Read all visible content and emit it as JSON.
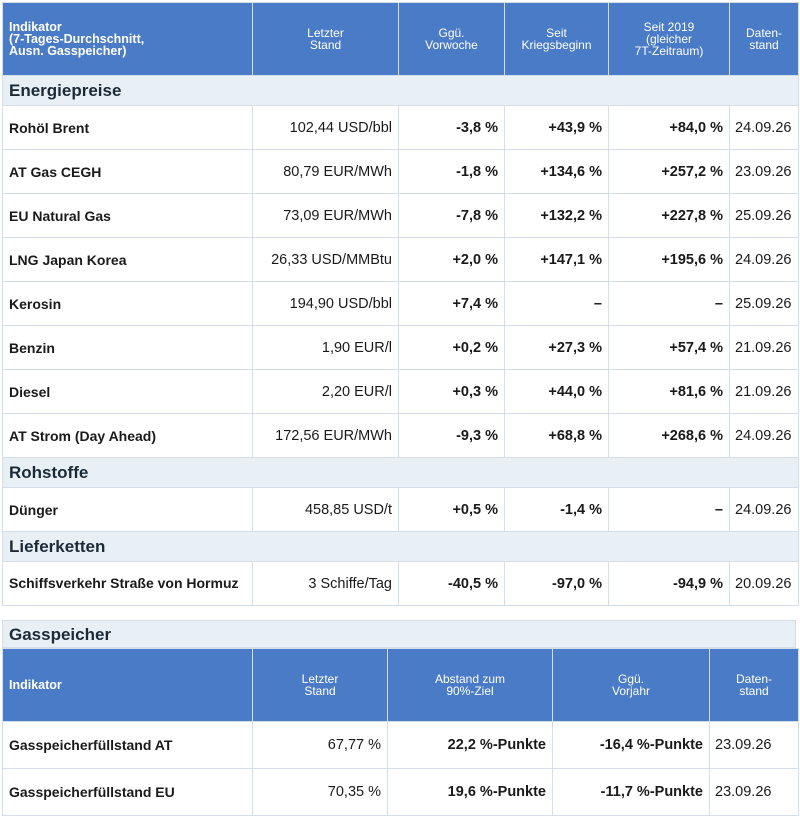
{
  "main_table": {
    "headers": [
      "Indikator\n(7-Tages-Durchschnitt,\nAusn. Gasspeicher)",
      "Letzter\nStand",
      "Ggü.\nVorwoche",
      "Seit\nKriegsbeginn",
      "Seit 2019\n(gleicher\n7T-Zeitraum)",
      "Daten-\nstand"
    ],
    "sections": [
      {
        "title": "Energiepreise",
        "rows": [
          {
            "name": "Rohöl Brent",
            "value": "102,44 USD/bbl",
            "week": "-3,8 %",
            "war": "+43,9 %",
            "since2019": "+84,0 %",
            "date": "24.09.26"
          },
          {
            "name": "AT Gas CEGH",
            "value": "80,79 EUR/MWh",
            "week": "-1,8 %",
            "war": "+134,6 %",
            "since2019": "+257,2 %",
            "date": "23.09.26"
          },
          {
            "name": "EU Natural Gas",
            "value": "73,09 EUR/MWh",
            "week": "-7,8 %",
            "war": "+132,2 %",
            "since2019": "+227,8 %",
            "date": "25.09.26"
          },
          {
            "name": "LNG Japan Korea",
            "value": "26,33 USD/MMBtu",
            "week": "+2,0 %",
            "war": "+147,1 %",
            "since2019": "+195,6 %",
            "date": "24.09.26"
          },
          {
            "name": "Kerosin",
            "value": "194,90 USD/bbl",
            "week": "+7,4 %",
            "war": "–",
            "since2019": "–",
            "date": "25.09.26"
          },
          {
            "name": "Benzin",
            "value": "1,90 EUR/l",
            "week": "+0,2 %",
            "war": "+27,3 %",
            "since2019": "+57,4 %",
            "date": "21.09.26"
          },
          {
            "name": "Diesel",
            "value": "2,20 EUR/l",
            "week": "+0,3 %",
            "war": "+44,0 %",
            "since2019": "+81,6 %",
            "date": "21.09.26"
          },
          {
            "name": "AT Strom (Day Ahead)",
            "value": "172,56 EUR/MWh",
            "week": "-9,3 %",
            "war": "+68,8 %",
            "since2019": "+268,6 %",
            "date": "24.09.26"
          }
        ]
      },
      {
        "title": "Rohstoffe",
        "rows": [
          {
            "name": "Dünger",
            "value": "458,85 USD/t",
            "week": "+0,5 %",
            "war": "-1,4 %",
            "since2019": "–",
            "date": "24.09.26"
          }
        ]
      },
      {
        "title": "Lieferketten",
        "rows": [
          {
            "name": "Schiffsverkehr Straße von Hormuz",
            "value": "3 Schiffe/Tag",
            "week": "-40,5 %",
            "war": "-97,0 %",
            "since2019": "-94,9 %",
            "date": "20.09.26"
          }
        ]
      }
    ]
  },
  "gas": {
    "title": "Gasspeicher",
    "headers": [
      "Indikator",
      "Letzter\nStand",
      "Abstand zum\n90%-Ziel",
      "Ggü.\nVorjahr",
      "Daten-\nstand"
    ],
    "rows": [
      {
        "name": "Gasspeicherfüllstand AT",
        "value": "67,77 %",
        "target": "22,2 %-Punkte",
        "prev_year": "-16,4 %-Punkte",
        "date": "23.09.26"
      },
      {
        "name": "Gasspeicherfüllstand EU",
        "value": "70,35 %",
        "target": "19,6 %-Punkte",
        "prev_year": "-11,7 %-Punkte",
        "date": "23.09.26"
      }
    ]
  }
}
